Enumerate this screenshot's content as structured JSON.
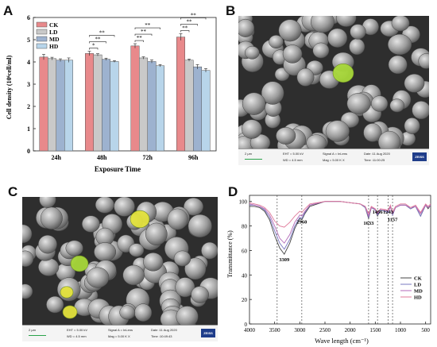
{
  "panels": {
    "a": "A",
    "b": "B",
    "c": "C",
    "d": "D"
  },
  "colors": {
    "CK": "#e8898b",
    "LD": "#c9c9c9",
    "MD": "#9db2cf",
    "HD": "#b8d5ea",
    "sem_particle": "#cdd8c0",
    "sem_highlight": "#a8d83a",
    "sem_highlight_c": "#e3e23c",
    "scale_bar": "#2aa34a"
  },
  "chart_data": [
    {
      "type": "bar",
      "xlabel": "Exposure Time",
      "ylabel": "Cell density (10⁶cell/ml)",
      "ylim": [
        0,
        6
      ],
      "yticks": [
        "0",
        "1",
        "2",
        "3",
        "4",
        "5",
        "6"
      ],
      "categories": [
        "24h",
        "48h",
        "72h",
        "96h"
      ],
      "series": [
        {
          "name": "CK",
          "values": [
            4.22,
            4.38,
            4.72,
            5.12
          ],
          "errors": [
            0.12,
            0.1,
            0.1,
            0.15
          ]
        },
        {
          "name": "LD",
          "values": [
            4.15,
            4.32,
            4.18,
            4.08
          ],
          "errors": [
            0.06,
            0.05,
            0.05,
            0.05
          ]
        },
        {
          "name": "MD",
          "values": [
            4.08,
            4.12,
            4.02,
            3.78
          ],
          "errors": [
            0.06,
            0.05,
            0.07,
            0.1
          ]
        },
        {
          "name": "HD",
          "values": [
            4.08,
            4.02,
            3.83,
            3.62
          ],
          "errors": [
            0.1,
            0.04,
            0.05,
            0.08
          ]
        }
      ],
      "legend": "top-left",
      "significance": [
        {
          "group": "48h",
          "from": "CK",
          "to": "LD",
          "label": "*"
        },
        {
          "group": "48h",
          "from": "CK",
          "to": "MD",
          "label": "**"
        },
        {
          "group": "48h",
          "from": "CK",
          "to": "HD",
          "label": "**"
        },
        {
          "group": "72h",
          "from": "CK",
          "to": "LD",
          "label": "**"
        },
        {
          "group": "72h",
          "from": "CK",
          "to": "MD",
          "label": "**"
        },
        {
          "group": "72h",
          "from": "CK",
          "to": "HD",
          "label": "**"
        },
        {
          "group": "96h",
          "from": "CK",
          "to": "LD",
          "label": "**"
        },
        {
          "group": "96h",
          "from": "CK",
          "to": "MD",
          "label": "**"
        },
        {
          "group": "96h",
          "from": "CK",
          "to": "HD",
          "label": "**"
        }
      ]
    },
    {
      "type": "line",
      "xlabel": "Wave length (cm⁻¹)",
      "ylabel": "Transmittance (%)",
      "xlim": [
        4000,
        400
      ],
      "xticks": [
        4000,
        3500,
        3000,
        2500,
        2000,
        1500,
        1000,
        500
      ],
      "ylim": [
        0,
        105
      ],
      "yticks": [
        0,
        20,
        40,
        60,
        80,
        100
      ],
      "grid": false,
      "legend": "bottom-right",
      "series": [
        {
          "name": "CK",
          "color": "#444444",
          "x": [
            4000,
            3900,
            3800,
            3700,
            3600,
            3500,
            3400,
            3309,
            3200,
            3100,
            3000,
            2960,
            2900,
            2800,
            2500,
            2200,
            2000,
            1800,
            1700,
            1633,
            1580,
            1500,
            1456,
            1400,
            1243,
            1200,
            1157,
            1100,
            1000,
            900,
            800,
            700,
            600,
            500,
            450,
            400
          ],
          "y": [
            96,
            96,
            95,
            92,
            85,
            72,
            62,
            57,
            66,
            78,
            86,
            85,
            90,
            96,
            100,
            100,
            99,
            98,
            95,
            86,
            95,
            93,
            88,
            93,
            91,
            96,
            89,
            95,
            97,
            97,
            94,
            96,
            88,
            97,
            94,
            97
          ]
        },
        {
          "name": "LD",
          "color": "#7a78c2",
          "x": [
            4000,
            3900,
            3800,
            3700,
            3600,
            3500,
            3400,
            3309,
            3200,
            3100,
            3000,
            2960,
            2900,
            2800,
            2500,
            2200,
            2000,
            1800,
            1700,
            1633,
            1580,
            1500,
            1456,
            1400,
            1243,
            1200,
            1157,
            1100,
            1000,
            900,
            800,
            700,
            600,
            500,
            450,
            400
          ],
          "y": [
            97,
            97,
            96,
            93,
            87,
            76,
            66,
            61,
            69,
            80,
            87,
            86,
            91,
            97,
            100,
            100,
            99,
            98,
            95,
            87,
            95,
            93,
            89,
            93,
            91,
            96,
            89,
            95,
            97,
            97,
            94,
            96,
            88,
            97,
            95,
            97
          ]
        },
        {
          "name": "MD",
          "color": "#b36ab8",
          "x": [
            4000,
            3900,
            3800,
            3700,
            3600,
            3500,
            3400,
            3309,
            3200,
            3100,
            3000,
            2960,
            2900,
            2800,
            2500,
            2200,
            2000,
            1800,
            1700,
            1633,
            1580,
            1500,
            1456,
            1400,
            1243,
            1200,
            1157,
            1100,
            1000,
            900,
            800,
            700,
            600,
            500,
            450,
            400
          ],
          "y": [
            98,
            97,
            96,
            94,
            89,
            80,
            70,
            66,
            73,
            83,
            89,
            88,
            92,
            97,
            100,
            100,
            99,
            98,
            96,
            88,
            95,
            94,
            90,
            94,
            92,
            96,
            90,
            95,
            97,
            97,
            95,
            96,
            90,
            97,
            95,
            97
          ]
        },
        {
          "name": "HD",
          "color": "#e07a9a",
          "x": [
            4000,
            3900,
            3800,
            3700,
            3600,
            3500,
            3400,
            3309,
            3200,
            3100,
            3000,
            2960,
            2900,
            2800,
            2500,
            2200,
            2000,
            1800,
            1700,
            1633,
            1580,
            1500,
            1456,
            1400,
            1243,
            1200,
            1157,
            1100,
            1000,
            900,
            800,
            700,
            600,
            500,
            450,
            400
          ],
          "y": [
            99,
            98,
            97,
            95,
            91,
            84,
            80,
            79,
            83,
            88,
            92,
            91,
            94,
            98,
            100,
            100,
            99,
            98,
            96,
            90,
            96,
            94,
            91,
            94,
            93,
            97,
            91,
            96,
            98,
            98,
            95,
            97,
            91,
            98,
            96,
            98
          ]
        }
      ],
      "reference_lines": [
        3450,
        2960,
        1633,
        1456,
        1243,
        1157
      ],
      "annotations": [
        {
          "x": 3309,
          "y": 53,
          "label": "3309"
        },
        {
          "x": 2960,
          "y": 84,
          "label": "2960"
        },
        {
          "x": 1633,
          "y": 83,
          "label": "1633"
        },
        {
          "x": 1456,
          "y": 92,
          "label": "1456"
        },
        {
          "x": 1243,
          "y": 92,
          "label": "1243"
        },
        {
          "x": 1157,
          "y": 86,
          "label": "1157"
        }
      ]
    }
  ],
  "sem_b": {
    "scale": "2 μm",
    "eht": "EHT = 5.00 kV",
    "wd": "WD = 4.5 mm",
    "signal": "Signal A = InLens",
    "mag": "Mag = 5.00 K X",
    "date": "Date :11 Aug 2020",
    "time": "Time :11:00:25",
    "brand": "ZEISS"
  },
  "sem_c": {
    "scale": "2 μm",
    "eht": "EHT = 5.00 kV",
    "wd": "WD = 4.5 mm",
    "signal": "Signal A = InLens",
    "mag": "Mag = 5.00 K X",
    "date": "Date :11 Aug 2020",
    "time": "Time :10:49:43",
    "brand": "ZEISS"
  }
}
